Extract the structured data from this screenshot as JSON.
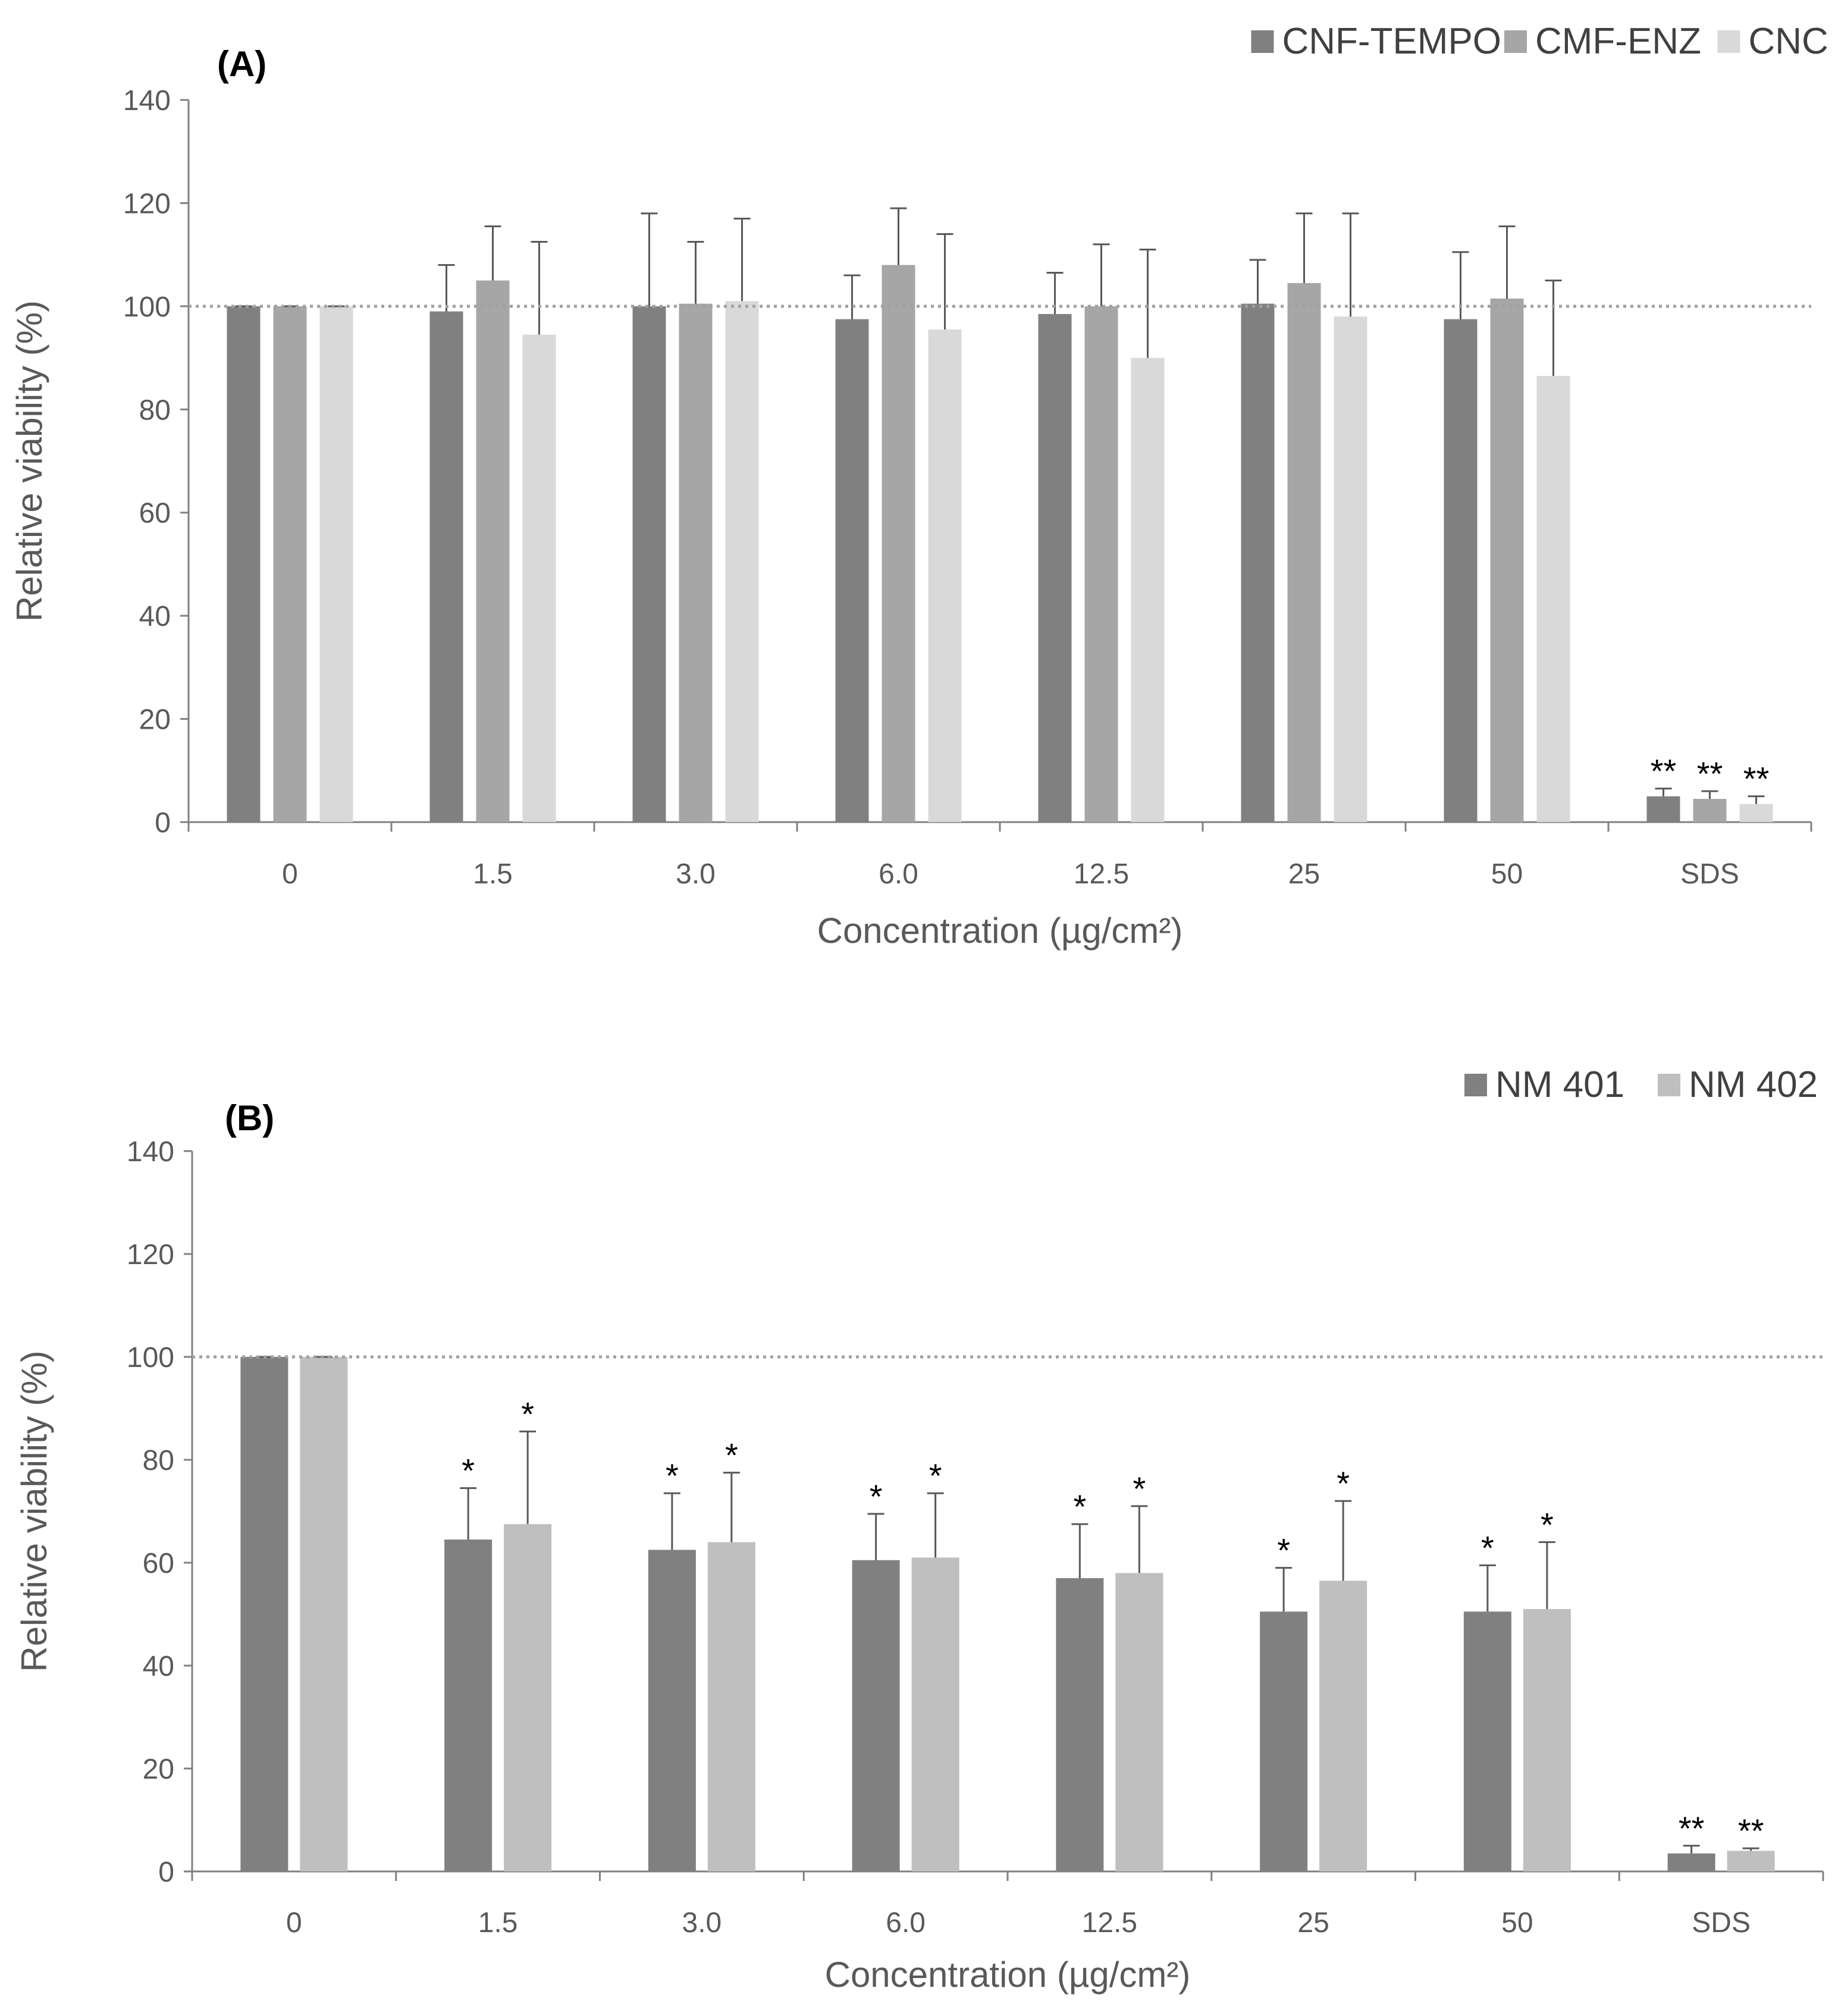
{
  "chart_data": [
    {
      "type": "bar",
      "panel_label": "(A)",
      "categories": [
        "0",
        "1.5",
        "3.0",
        "6.0",
        "12.5",
        "25",
        "50",
        "SDS"
      ],
      "series": [
        {
          "name": "CNF-TEMPO",
          "color": "#808080",
          "values": [
            100,
            99,
            100,
            97.5,
            98.5,
            100.5,
            97.5,
            5
          ],
          "errors": [
            0,
            9,
            18,
            8.5,
            8,
            8.5,
            13,
            1.5
          ],
          "annotations": [
            "",
            "",
            "",
            "",
            "",
            "",
            "",
            "**"
          ]
        },
        {
          "name": "CMF-ENZ",
          "color": "#a6a6a6",
          "values": [
            100,
            105,
            100.5,
            108,
            100,
            104.5,
            101.5,
            4.5
          ],
          "errors": [
            0,
            10.5,
            12,
            11,
            12,
            13.5,
            14,
            1.5
          ],
          "annotations": [
            "",
            "",
            "",
            "",
            "",
            "",
            "",
            "**"
          ]
        },
        {
          "name": "CNC",
          "color": "#d9d9d9",
          "values": [
            100,
            94.5,
            101,
            95.5,
            90,
            98,
            86.5,
            3.5
          ],
          "errors": [
            0,
            18,
            16,
            18.5,
            21,
            20,
            18.5,
            1.5
          ],
          "annotations": [
            "",
            "",
            "",
            "",
            "",
            "",
            "",
            "**"
          ]
        }
      ],
      "xlabel": "Concentration (µg/cm²)",
      "ylabel": "Relative viability (%)",
      "ylim": [
        0,
        140
      ],
      "yticks": [
        "0",
        "20",
        "40",
        "60",
        "80",
        "100",
        "120",
        "140"
      ],
      "reference_line": 100,
      "legend_position": "top-right",
      "grid": false
    },
    {
      "type": "bar",
      "panel_label": "(B)",
      "categories": [
        "0",
        "1.5",
        "3.0",
        "6.0",
        "12.5",
        "25",
        "50",
        "SDS"
      ],
      "series": [
        {
          "name": "NM 401",
          "color": "#808080",
          "values": [
            100,
            64.5,
            62.5,
            60.5,
            57,
            50.5,
            50.5,
            3.5
          ],
          "errors": [
            0,
            10,
            11,
            9,
            10.5,
            8.5,
            9,
            1.5
          ],
          "annotations": [
            "",
            "*",
            "*",
            "*",
            "*",
            "*",
            "*",
            "**"
          ]
        },
        {
          "name": "NM 402",
          "color": "#bfbfbf",
          "values": [
            100,
            67.5,
            64,
            61,
            58,
            56.5,
            51,
            4
          ],
          "errors": [
            0,
            18,
            13.5,
            12.5,
            13,
            15.5,
            13,
            0.5
          ],
          "annotations": [
            "",
            "*",
            "*",
            "*",
            "*",
            "*",
            "*",
            "**"
          ]
        }
      ],
      "xlabel": "Concentration (µg/cm²)",
      "ylabel": "Relative viability (%)",
      "ylim": [
        0,
        140
      ],
      "yticks": [
        "0",
        "20",
        "40",
        "60",
        "80",
        "100",
        "120",
        "140"
      ],
      "reference_line": 100,
      "legend_position": "top-right",
      "grid": false
    }
  ]
}
